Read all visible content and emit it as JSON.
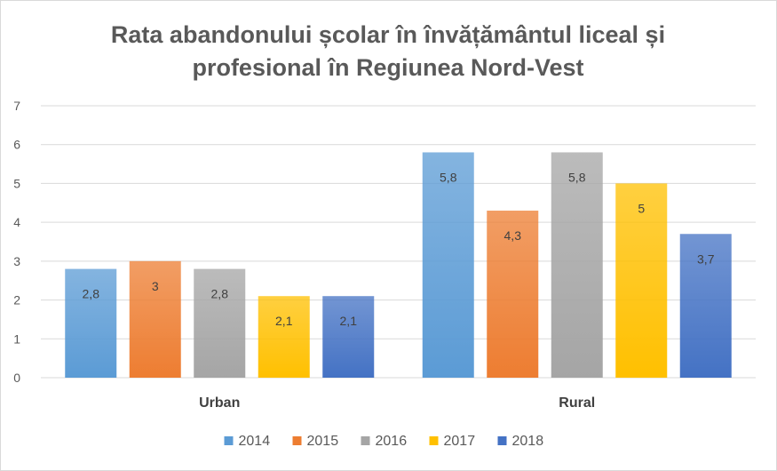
{
  "chart_data": {
    "type": "bar",
    "title": "Rata abandonului școlar în învățământul liceal și profesional în Regiunea Nord-Vest",
    "title_lines": [
      "Rata abandonului școlar în învățământul liceal și",
      "profesional în Regiunea Nord-Vest"
    ],
    "categories": [
      "Urban",
      "Rural"
    ],
    "series": [
      {
        "name": "2014",
        "values": [
          2.8,
          5.8
        ],
        "labels": [
          "2,8",
          "5,8"
        ],
        "color": "#5b9bd5"
      },
      {
        "name": "2015",
        "values": [
          3,
          4.3
        ],
        "labels": [
          "3",
          "4,3"
        ],
        "color": "#ed7d31"
      },
      {
        "name": "2016",
        "values": [
          2.8,
          5.8
        ],
        "labels": [
          "2,8",
          "5,8"
        ],
        "color": "#a5a5a5"
      },
      {
        "name": "2017",
        "values": [
          2.1,
          5
        ],
        "labels": [
          "2,1",
          "5"
        ],
        "color": "#ffc000"
      },
      {
        "name": "2018",
        "values": [
          2.1,
          3.7
        ],
        "labels": [
          "2,1",
          "3,7"
        ],
        "color": "#4472c4"
      }
    ],
    "yticks": [
      "0",
      "1",
      "2",
      "3",
      "4",
      "5",
      "6",
      "7"
    ],
    "ylim": [
      0,
      7
    ],
    "grid": true,
    "legend_position": "bottom",
    "xlabel": "",
    "ylabel": ""
  }
}
